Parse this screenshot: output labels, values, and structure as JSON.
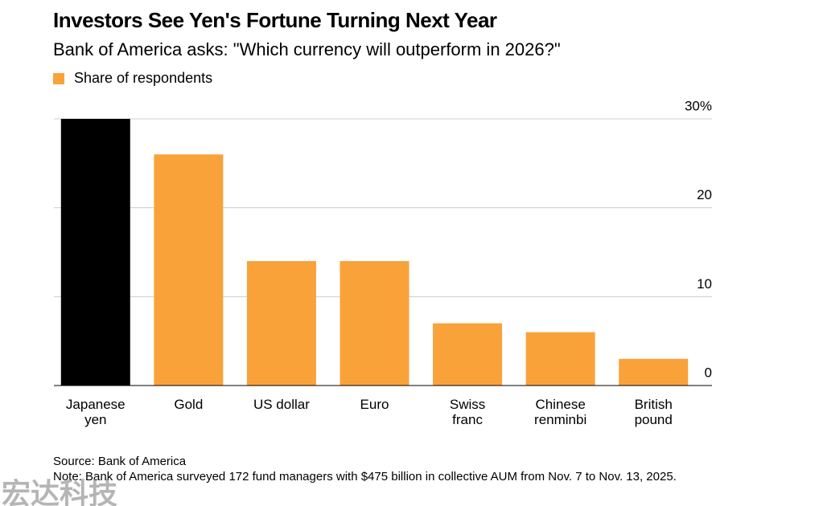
{
  "chart_data": {
    "type": "bar",
    "title": "Investors See Yen's Fortune Turning Next Year",
    "subtitle": "Bank of America asks: \"Which currency will outperform in 2026?\"",
    "categories": [
      "Japanese yen",
      "Gold",
      "US dollar",
      "Euro",
      "Swiss franc",
      "Chinese renminbi",
      "British pound"
    ],
    "series": [
      {
        "name": "Share of respondents",
        "color": "#f9a23a",
        "colors": [
          "#000000",
          "#f9a23a",
          "#f9a23a",
          "#f9a23a",
          "#f9a23a",
          "#f9a23a",
          "#f9a23a"
        ],
        "values": [
          30,
          26,
          14,
          14,
          7,
          6,
          3
        ]
      }
    ],
    "ylim": [
      0,
      30
    ],
    "yticks": [
      0,
      10,
      20,
      {
        "value": 30,
        "label": "30%"
      }
    ],
    "grid": true,
    "source": "Source: Bank of America",
    "note": "Note: Bank of America surveyed 172 fund managers with $475 billion in collective AUM from Nov. 7 to Nov. 13, 2025.",
    "watermark": "宏达科技"
  }
}
